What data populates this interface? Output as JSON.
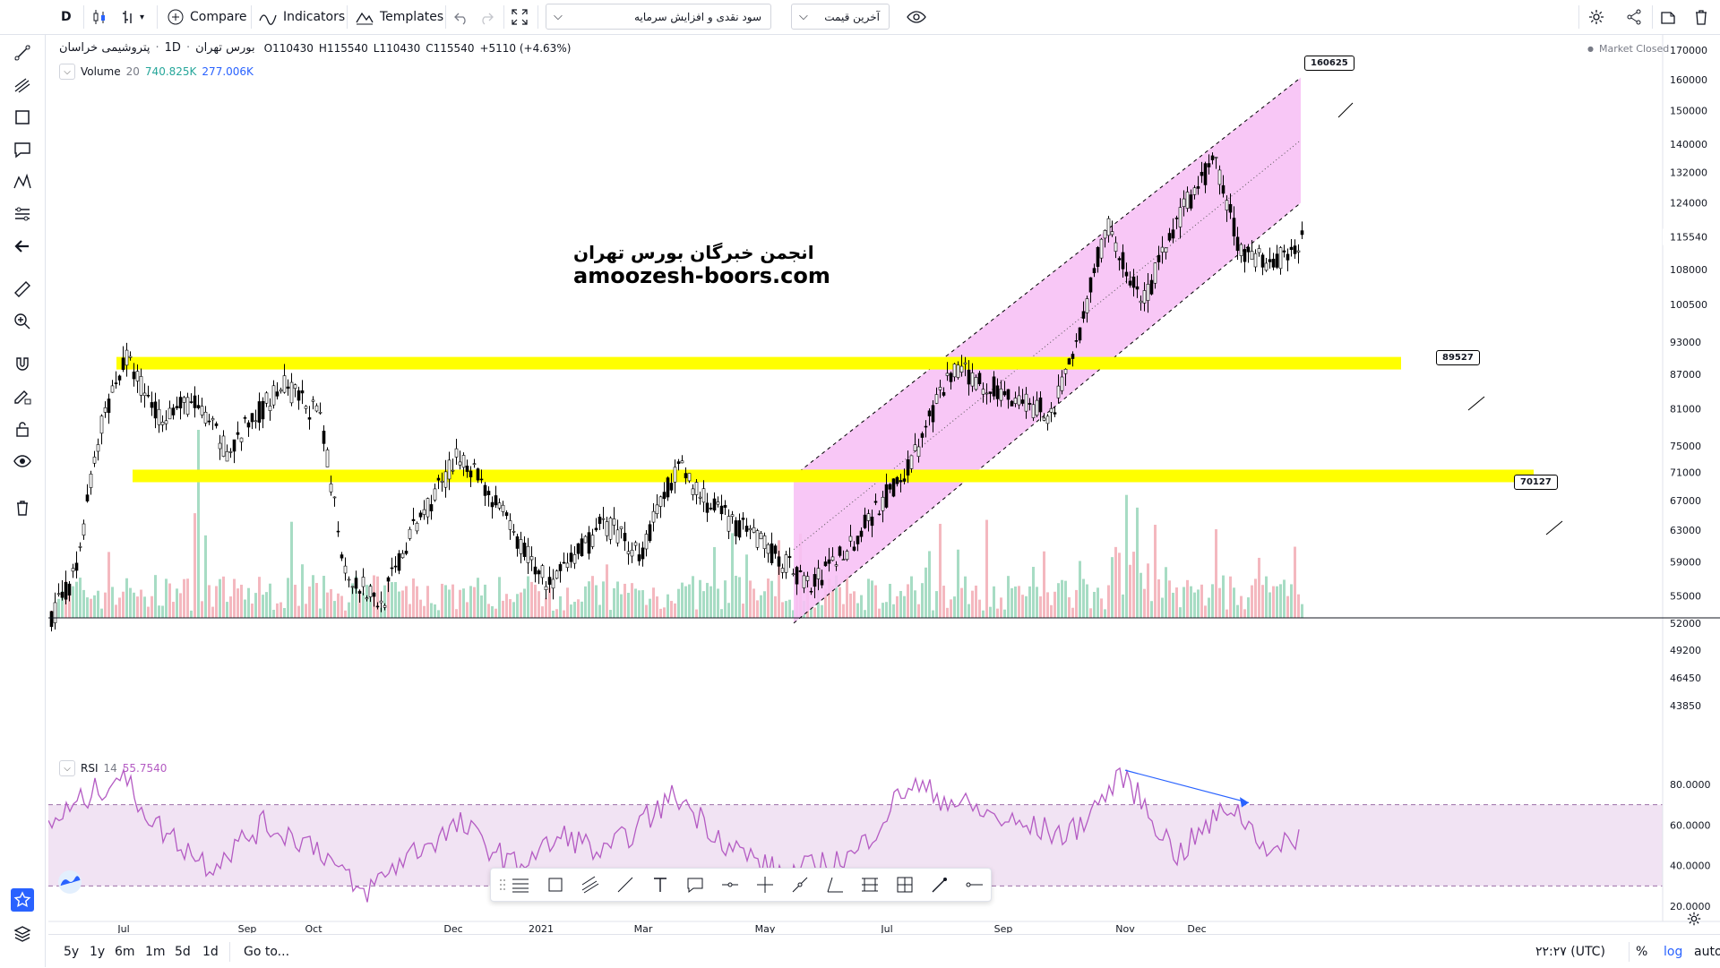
{
  "toolbar": {
    "interval": "D",
    "compare": "Compare",
    "indicators": "Indicators",
    "templates": "Templates",
    "select_template": "سود نقدی و افزایش سرمایه",
    "select_price": "آخرین قیمت"
  },
  "legend": {
    "symbol": "پتروشیمی خراسان",
    "interval": "1D",
    "exchange": "بورس تهران",
    "open_label": "O",
    "open": "110430",
    "high_label": "H",
    "high": "115540",
    "low_label": "L",
    "low": "110430",
    "close_label": "C",
    "close": "115540",
    "change": "+5110 (+4.63%)",
    "volume_label": "Volume",
    "volume_period": "20",
    "volume_value": "740.825K",
    "volume_ma": "277.006K",
    "market_status": "Market Closed"
  },
  "rsi_legend": {
    "label": "RSI",
    "period": "14",
    "value": "55.7540"
  },
  "watermark": {
    "line1": "انجمن خبرگان بورس تهران",
    "line2": "amoozesh-boors.com"
  },
  "callouts": {
    "a": "160625",
    "b": "89527",
    "c": "70127"
  },
  "bottombar": {
    "ranges": [
      "5y",
      "1y",
      "6m",
      "1m",
      "5d",
      "1d"
    ],
    "goto": "Go to...",
    "time": "۲۲:۲۷ (UTC)",
    "percent": "%",
    "log": "log",
    "auto": "auto"
  },
  "colors": {
    "accent": "#2962ff",
    "up_volume": "#a7dcc4",
    "down_volume": "#f4b8bf",
    "band": "#ffff00",
    "channel": "#f7c1f5",
    "rsi_line": "#b45bc3",
    "rsi_band": "#f1e3f3"
  },
  "chart_data": {
    "type": "candlestick",
    "price_scale": "log",
    "y_ticks": [
      "170000",
      "160000",
      "150000",
      "140000",
      "132000",
      "124000",
      "115540",
      "108000",
      "100500",
      "93000",
      "87000",
      "81000",
      "75000",
      "71000",
      "67000",
      "63000",
      "59000",
      "55000",
      "52000",
      "49200",
      "46450",
      "43850"
    ],
    "current_price": "115540",
    "x_ticks": [
      "Jul",
      "Sep",
      "Oct",
      "Dec",
      "2021",
      "Mar",
      "May",
      "Jul",
      "Sep",
      "Nov",
      "Dec"
    ],
    "rsi_ticks": [
      "80.0000",
      "60.0000",
      "40.0000",
      "20.0000"
    ],
    "horizontal_levels": [
      89000,
      70500
    ],
    "channel_range": [
      52000,
      160625
    ]
  }
}
